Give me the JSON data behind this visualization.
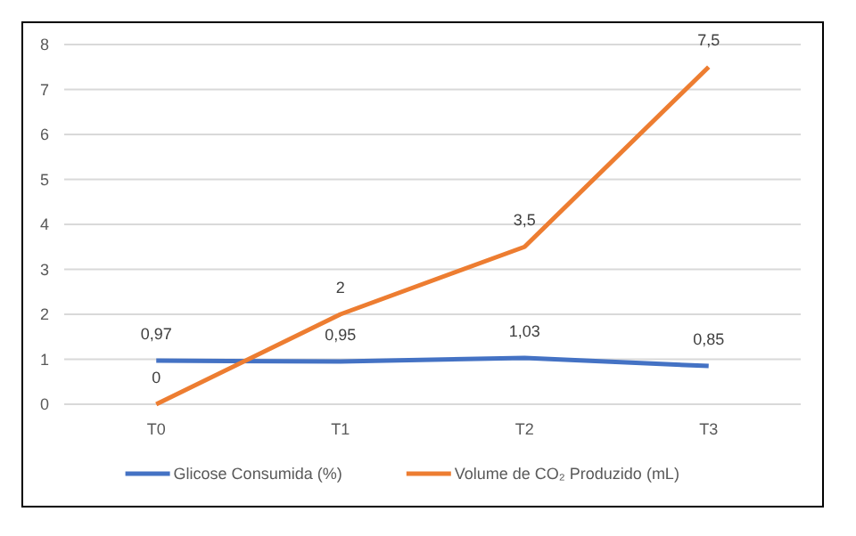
{
  "chart_data": {
    "type": "line",
    "categories": [
      "T0",
      "T1",
      "T2",
      "T3"
    ],
    "series": [
      {
        "name": "Glicose Consumida (%)",
        "color": "#4472c4",
        "values": [
          0.97,
          0.95,
          1.03,
          0.85
        ],
        "value_labels": [
          "0,97",
          "0,95",
          "1,03",
          "0,85"
        ]
      },
      {
        "name": "Volume de CO₂ Produzido (mL)",
        "color": "#ed7d31",
        "values": [
          0,
          2,
          3.5,
          7.5
        ],
        "value_labels": [
          "0",
          "2",
          "3,5",
          "7,5"
        ]
      }
    ],
    "ylim": [
      0,
      8
    ],
    "yticks": [
      0,
      1,
      2,
      3,
      4,
      5,
      6,
      7,
      8
    ],
    "grid": "y",
    "legend": "bottom",
    "marker": "none"
  }
}
